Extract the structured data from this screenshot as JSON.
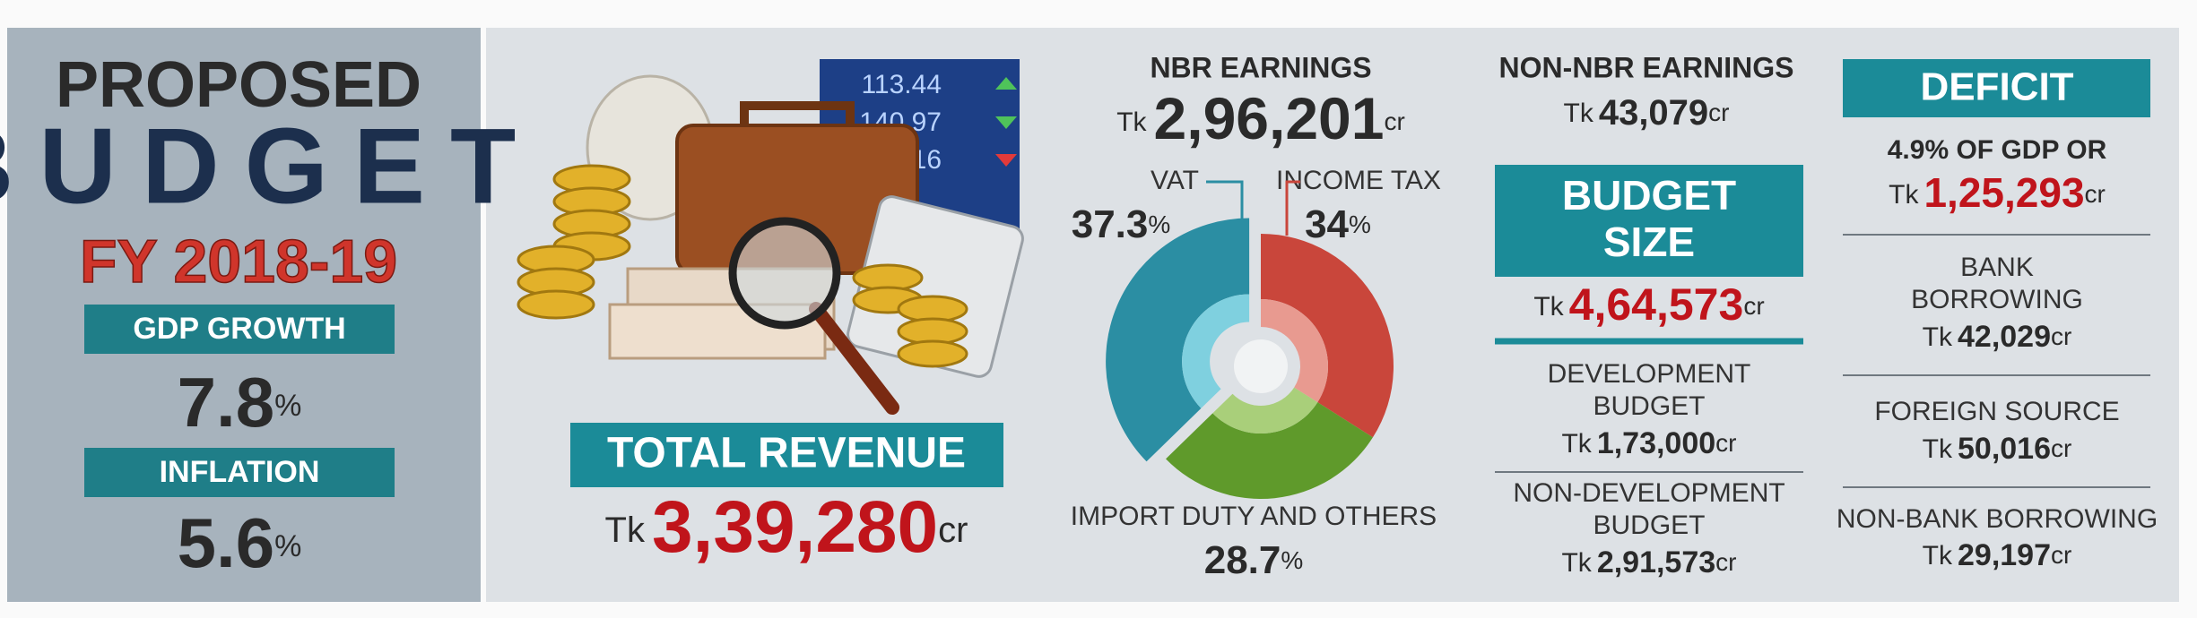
{
  "title": {
    "line1": "PROPOSED",
    "line2": "BUDGET",
    "line3": "FY 2018-19"
  },
  "gdp_growth": {
    "label": "GDP GROWTH",
    "value": "7.8",
    "unit": "%"
  },
  "inflation": {
    "label": "INFLATION",
    "value": "5.6",
    "unit": "%"
  },
  "illustration": {
    "ticker": [
      "113.44",
      "140.97",
      "2.16"
    ]
  },
  "total_revenue": {
    "label": "TOTAL REVENUE",
    "prefix": "Tk",
    "amount": "3,39,280",
    "unit": "cr"
  },
  "nbr_earnings": {
    "label": "NBR EARNINGS",
    "prefix": "Tk",
    "amount": "2,96,201",
    "unit": "cr"
  },
  "donut": {
    "unit": "%",
    "segments": [
      {
        "name": "INCOME TAX",
        "value": 34,
        "color": "#c9463b",
        "inner_color": "#e89a90"
      },
      {
        "name": "IMPORT DUTY AND OTHERS",
        "value": 28.7,
        "color": "#5f9a2b",
        "inner_color": "#a9cf7a"
      },
      {
        "name": "VAT",
        "value": 37.3,
        "color": "#2b8ea3",
        "inner_color": "#7fd0df"
      }
    ]
  },
  "non_nbr_earnings": {
    "label": "NON-NBR EARNINGS",
    "prefix": "Tk",
    "amount": "43,079",
    "unit": "cr"
  },
  "budget_size": {
    "label_line1": "BUDGET",
    "label_line2": "SIZE",
    "prefix": "Tk",
    "amount": "4,64,573",
    "unit": "cr"
  },
  "development_budget": {
    "label_line1": "DEVELOPMENT",
    "label_line2": "BUDGET",
    "prefix": "Tk",
    "amount": "1,73,000",
    "unit": "cr"
  },
  "non_development_budget": {
    "label_line1": "NON-DEVELOPMENT",
    "label_line2": "BUDGET",
    "prefix": "Tk",
    "amount": "2,91,573",
    "unit": "cr"
  },
  "deficit": {
    "label": "DEFICIT",
    "share": "4.9% OF GDP OR",
    "prefix": "Tk",
    "amount": "1,25,293",
    "unit": "cr"
  },
  "bank_borrowing": {
    "label_line1": "BANK",
    "label_line2": "BORROWING",
    "prefix": "Tk",
    "amount": "42,029",
    "unit": "cr"
  },
  "foreign_source": {
    "label": "FOREIGN SOURCE",
    "prefix": "Tk",
    "amount": "50,016",
    "unit": "cr"
  },
  "non_bank_borrowing": {
    "label": "NON-BANK BORROWING",
    "prefix": "Tk",
    "amount": "29,197",
    "unit": "cr"
  }
}
